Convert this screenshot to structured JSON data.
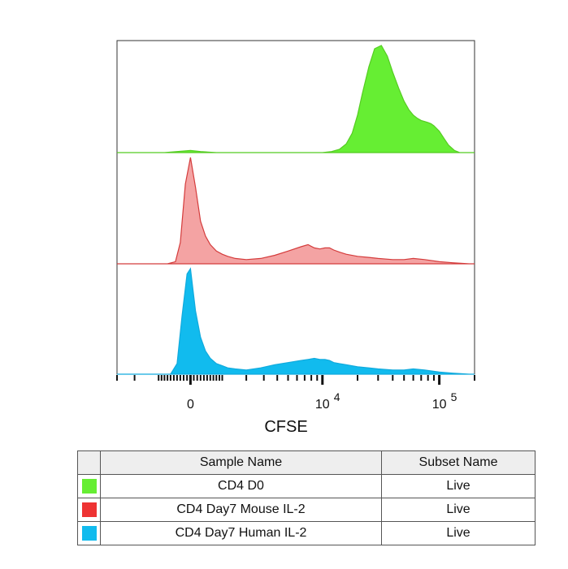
{
  "chart_data": {
    "type": "area",
    "xlabel": "CFSE",
    "x_scale": "biexponential",
    "tick_labels": [
      {
        "base": "0",
        "exp": ""
      },
      {
        "base": "10",
        "exp": "4"
      },
      {
        "base": "10",
        "exp": "5"
      }
    ],
    "series": [
      {
        "name": "CD4 D0",
        "color": "#66ee33",
        "stroke": "#55cc22",
        "x": [
          -3000,
          -1500,
          -800,
          -400,
          0,
          300,
          800,
          1500,
          2500,
          4000,
          6000,
          8000,
          10000,
          12000,
          14000,
          16000,
          18000,
          20000,
          22000,
          25000,
          28000,
          32000,
          36000,
          40000,
          45000,
          50000,
          55000,
          60000,
          65000,
          70000,
          75000,
          80000,
          85000,
          90000,
          100000,
          110000,
          120000,
          135000,
          150000,
          180000
        ],
        "y": [
          0.0,
          0.0,
          0.0,
          0.01,
          0.02,
          0.01,
          0.0,
          0.0,
          0.0,
          0.0,
          0.0,
          0.0,
          0.0,
          0.01,
          0.03,
          0.08,
          0.18,
          0.35,
          0.55,
          0.8,
          0.97,
          1.0,
          0.9,
          0.75,
          0.6,
          0.48,
          0.4,
          0.35,
          0.32,
          0.3,
          0.29,
          0.28,
          0.27,
          0.25,
          0.2,
          0.13,
          0.07,
          0.02,
          0.0,
          0.0
        ]
      },
      {
        "name": "CD4 Day7 Mouse IL-2",
        "color": "#f4a3a3",
        "stroke": "#d43c3c",
        "x": [
          -3000,
          -1000,
          -700,
          -450,
          -300,
          -150,
          0,
          150,
          300,
          450,
          600,
          800,
          1000,
          1200,
          1500,
          2000,
          2800,
          3800,
          5000,
          6500,
          7500,
          8500,
          9500,
          10500,
          11500,
          12500,
          14000,
          16000,
          20000,
          25000,
          30000,
          40000,
          50000,
          60000,
          75000,
          100000,
          130000,
          180000
        ],
        "y": [
          0.0,
          0.0,
          0.0,
          0.02,
          0.2,
          0.75,
          1.0,
          0.72,
          0.4,
          0.26,
          0.18,
          0.12,
          0.09,
          0.07,
          0.05,
          0.04,
          0.05,
          0.08,
          0.12,
          0.16,
          0.18,
          0.15,
          0.14,
          0.15,
          0.15,
          0.13,
          0.11,
          0.09,
          0.07,
          0.06,
          0.05,
          0.04,
          0.04,
          0.05,
          0.04,
          0.02,
          0.01,
          0.0
        ]
      },
      {
        "name": "CD4 Day7 Human IL-2",
        "color": "#11bbee",
        "stroke": "#11aadd",
        "x": [
          -3000,
          -800,
          -600,
          -400,
          -250,
          -100,
          0,
          150,
          300,
          450,
          600,
          800,
          1000,
          1200,
          1500,
          2000,
          2800,
          3800,
          5000,
          6500,
          7500,
          8500,
          9500,
          10500,
          11500,
          12500,
          14000,
          16000,
          20000,
          25000,
          30000,
          40000,
          50000,
          60000,
          75000,
          100000,
          130000,
          180000
        ],
        "y": [
          0.0,
          0.0,
          0.0,
          0.1,
          0.55,
          0.95,
          1.0,
          0.6,
          0.35,
          0.22,
          0.15,
          0.1,
          0.08,
          0.06,
          0.05,
          0.04,
          0.06,
          0.09,
          0.11,
          0.13,
          0.14,
          0.15,
          0.14,
          0.14,
          0.13,
          0.11,
          0.1,
          0.09,
          0.07,
          0.06,
          0.05,
          0.04,
          0.04,
          0.05,
          0.04,
          0.02,
          0.01,
          0.0
        ]
      }
    ]
  },
  "legend_table": {
    "headers": [
      "",
      "Sample Name",
      "Subset Name"
    ],
    "rows": [
      {
        "color": "#66ee33",
        "sample": "CD4 D0",
        "subset": "Live"
      },
      {
        "color": "#ee3333",
        "sample": "CD4 Day7 Mouse IL-2",
        "subset": "Live"
      },
      {
        "color": "#11bbee",
        "sample": "CD4 Day7 Human IL-2",
        "subset": "Live"
      }
    ]
  }
}
